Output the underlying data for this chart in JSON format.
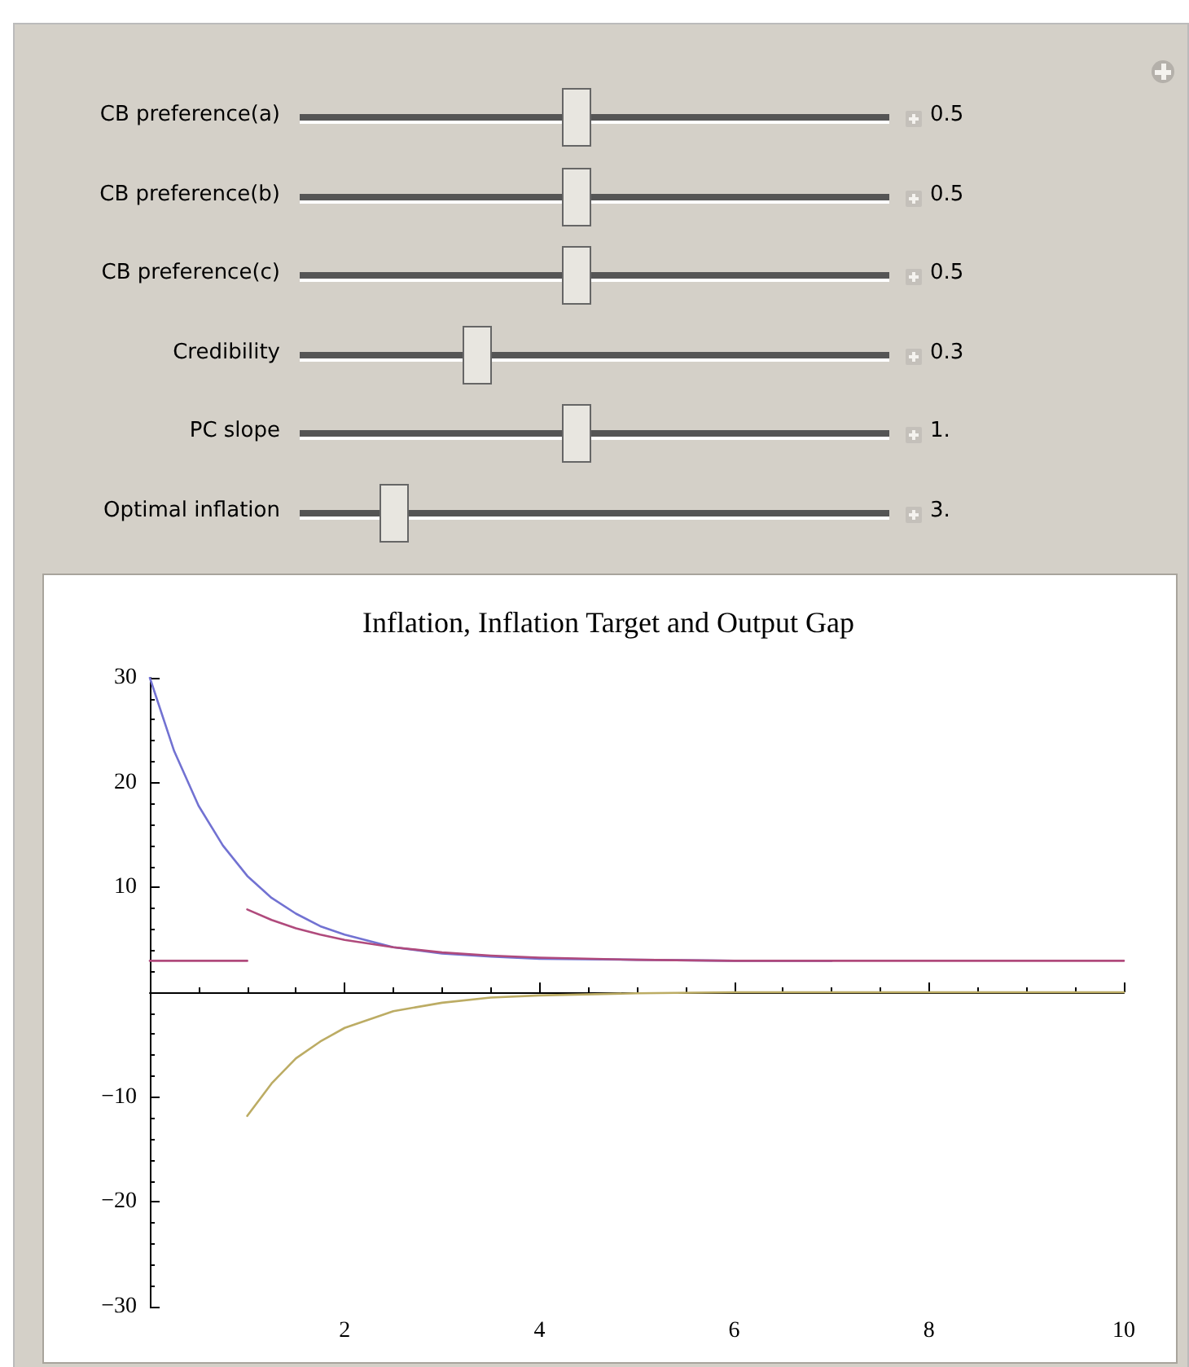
{
  "chart_data": {
    "type": "line",
    "title": "Inflation, Inflation Target and Output Gap",
    "annotations": [
      "CB preference(a)",
      "0.5",
      "CB preference(b)",
      "0.5",
      "CB preference(c)",
      "0.5",
      "Credibility",
      "0.3",
      "PC slope",
      "1.",
      "Optimal inflation",
      "3."
    ],
    "xlim": [
      0,
      10
    ],
    "xticks": [
      2,
      4,
      6,
      8,
      10
    ],
    "ylim": [
      -30,
      30
    ],
    "yticks": [
      -30,
      -20,
      -10,
      10,
      20,
      30
    ],
    "grid": false,
    "marker": "none",
    "line_style": "solid",
    "series": [
      {
        "color": "#7272d2",
        "x": [
          0,
          0.25,
          0.5,
          0.75,
          1,
          1.25,
          1.5,
          1.75,
          2,
          2.5,
          3,
          3.5,
          4,
          5,
          6,
          7
        ],
        "values": [
          30,
          23.0,
          17.8,
          14.0,
          11.1,
          9.0,
          7.5,
          6.3,
          5.5,
          4.3,
          3.7,
          3.4,
          3.2,
          3.1,
          3.0,
          3.0
        ]
      },
      {
        "color": "#b04a7c",
        "x": [
          1,
          1.25,
          1.5,
          1.75,
          2,
          2.5,
          3,
          3.5,
          4,
          5,
          6,
          7,
          8,
          9,
          10
        ],
        "values": [
          7.9,
          6.9,
          6.1,
          5.5,
          5.0,
          4.3,
          3.8,
          3.5,
          3.3,
          3.1,
          3.0,
          3.0,
          3.0,
          3.0,
          3.0
        ]
      },
      {
        "color": "#b04a7c",
        "x": [
          0,
          1
        ],
        "values": [
          3,
          3
        ]
      },
      {
        "color": "#bcac64",
        "x": [
          1,
          1.25,
          1.5,
          1.75,
          2,
          2.5,
          3,
          3.5,
          4,
          5,
          6,
          7,
          8,
          9,
          10
        ],
        "values": [
          -11.8,
          -8.7,
          -6.3,
          -4.7,
          -3.4,
          -1.8,
          -1.0,
          -0.5,
          -0.3,
          -0.1,
          0,
          0,
          0,
          0,
          0
        ]
      }
    ]
  }
}
